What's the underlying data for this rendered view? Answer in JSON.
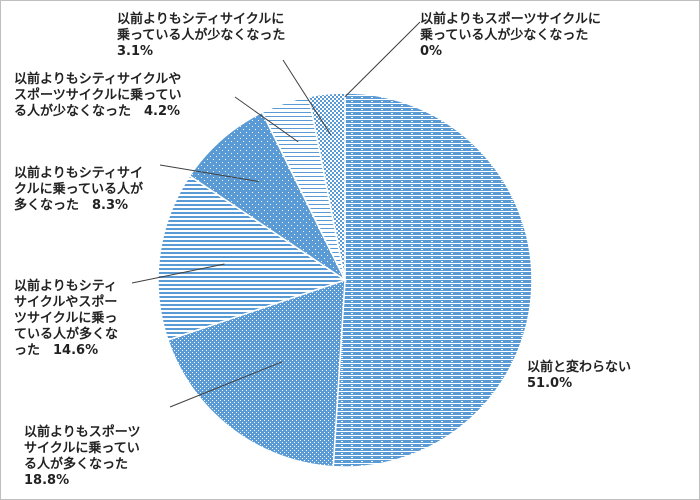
{
  "chart_data": {
    "type": "pie",
    "title": "",
    "start_angle_deg": 0,
    "direction": "clockwise",
    "legend": "none",
    "slices": [
      {
        "label": "以前と変わらない",
        "value": 51.0,
        "value_label": "51.0%",
        "pattern": "horizontal-dashes"
      },
      {
        "label": "以前よりもスポーツサイクルに乗っている人が多くなった",
        "value": 18.8,
        "value_label": "18.8%",
        "pattern": "fine-dots"
      },
      {
        "label": "以前よりもシティサイクルやスポーツサイクルに乗っている人が多くなった",
        "value": 14.6,
        "value_label": "14.6%",
        "pattern": "horizontal-stripes"
      },
      {
        "label": "以前よりもシティサイクルに乗っている人が多くなった",
        "value": 8.3,
        "value_label": "8.3%",
        "pattern": "diagonal-dots"
      },
      {
        "label": "以前よりもシティサイクルやスポーツサイクルに乗っている人が少なくなった",
        "value": 4.2,
        "value_label": "4.2%",
        "pattern": "light-horizontal-stripes"
      },
      {
        "label": "以前よりもシティサイクルに乗っている人が少なくなった",
        "value": 3.1,
        "value_label": "3.1%",
        "pattern": "checker"
      },
      {
        "label": "以前よりもスポーツサイクルに乗っている人が少なくなった",
        "value": 0,
        "value_label": "0%",
        "pattern": "none"
      }
    ],
    "label_texts": [
      {
        "lines": [
          "以前と変わらない",
          "51.0%"
        ]
      },
      {
        "lines": [
          "以前よりもスポーツ",
          "サイクルに乗ってい",
          "る人が多くなった",
          "18.8%"
        ]
      },
      {
        "lines": [
          "以前よりもシティ",
          "サイクルやスポー",
          "ツサイクルに乗っ",
          "ている人が多くな",
          "った　14.6%"
        ]
      },
      {
        "lines": [
          "以前よりもシティサイ",
          "クルに乗っている人が",
          "多くなった　8.3%"
        ]
      },
      {
        "lines": [
          "以前よりもシティサイクルや",
          "スポーツサイクルに乗ってい",
          "る人が少なくなった　4.2%"
        ]
      },
      {
        "lines": [
          "以前よりもシティサイクルに",
          "乗っている人が少なくなった",
          "3.1%"
        ]
      },
      {
        "lines": [
          "以前よりもスポーツサイクルに",
          "乗っている人が少なくなった",
          "0%"
        ]
      }
    ]
  }
}
